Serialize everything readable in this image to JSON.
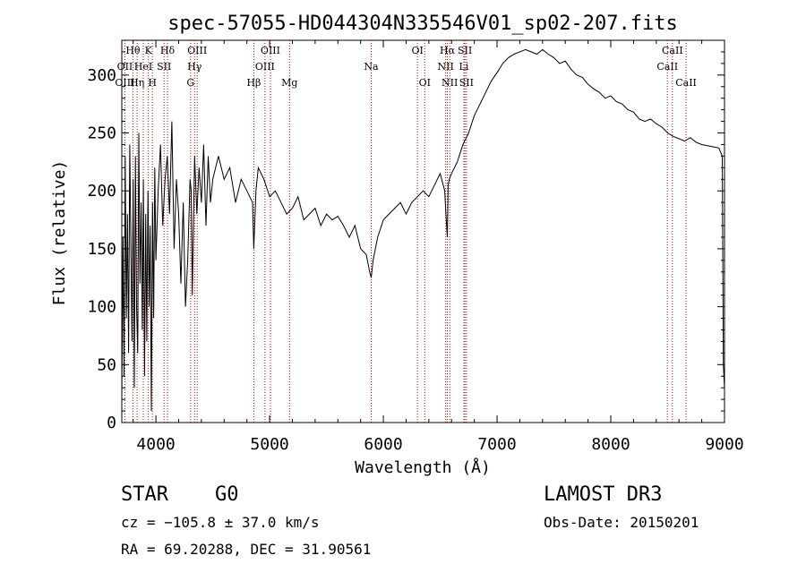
{
  "chart_data": {
    "type": "line",
    "title": "spec-57055-HD044304N335546V01_sp02-207.fits",
    "xlabel": "Wavelength (Å)",
    "ylabel": "Flux (relative)",
    "xlim": [
      3700,
      9000
    ],
    "ylim": [
      0,
      330
    ],
    "x_ticks": [
      4000,
      5000,
      6000,
      7000,
      8000,
      9000
    ],
    "y_ticks": [
      0,
      50,
      100,
      150,
      200,
      250,
      300
    ],
    "spectral_lines": [
      {
        "label": "Hθ",
        "wavelength": 3798,
        "row": 1
      },
      {
        "label": "OII",
        "wavelength": 3727,
        "row": 2
      },
      {
        "label": "OIII",
        "wavelength": 3727,
        "row": 3
      },
      {
        "label": "Hη",
        "wavelength": 3835,
        "row": 3
      },
      {
        "label": "K",
        "wavelength": 3934,
        "row": 1
      },
      {
        "label": "HeI",
        "wavelength": 3889,
        "row": 2
      },
      {
        "label": "H",
        "wavelength": 3969,
        "row": 3
      },
      {
        "label": "Hδ",
        "wavelength": 4102,
        "row": 1
      },
      {
        "label": "SII",
        "wavelength": 4072,
        "row": 2
      },
      {
        "label": "OIII",
        "wavelength": 4363,
        "row": 1
      },
      {
        "label": "Hγ",
        "wavelength": 4340,
        "row": 2
      },
      {
        "label": "G",
        "wavelength": 4305,
        "row": 3
      },
      {
        "label": "Hβ",
        "wavelength": 4861,
        "row": 3
      },
      {
        "label": "OIII",
        "wavelength": 5007,
        "row": 1
      },
      {
        "label": "OIII",
        "wavelength": 4959,
        "row": 2
      },
      {
        "label": "Mg",
        "wavelength": 5175,
        "row": 3
      },
      {
        "label": "Na",
        "wavelength": 5893,
        "row": 2
      },
      {
        "label": "OI",
        "wavelength": 6300,
        "row": 1
      },
      {
        "label": "OI",
        "wavelength": 6364,
        "row": 3
      },
      {
        "label": "Hα",
        "wavelength": 6563,
        "row": 1
      },
      {
        "label": "NII",
        "wavelength": 6548,
        "row": 2
      },
      {
        "label": "NII",
        "wavelength": 6584,
        "row": 3
      },
      {
        "label": "SII",
        "wavelength": 6717,
        "row": 1
      },
      {
        "label": "Li",
        "wavelength": 6708,
        "row": 2
      },
      {
        "label": "SII",
        "wavelength": 6731,
        "row": 3
      },
      {
        "label": "CaII",
        "wavelength": 8542,
        "row": 1
      },
      {
        "label": "CaII",
        "wavelength": 8498,
        "row": 2
      },
      {
        "label": "CaII",
        "wavelength": 8662,
        "row": 3
      }
    ],
    "series": [
      {
        "name": "flux",
        "x": [
          3700,
          3710,
          3720,
          3730,
          3740,
          3750,
          3760,
          3770,
          3780,
          3790,
          3800,
          3810,
          3820,
          3830,
          3840,
          3850,
          3860,
          3870,
          3880,
          3890,
          3900,
          3910,
          3920,
          3930,
          3940,
          3950,
          3960,
          3970,
          3980,
          3990,
          4000,
          4020,
          4040,
          4060,
          4080,
          4100,
          4120,
          4140,
          4160,
          4180,
          4200,
          4220,
          4240,
          4260,
          4280,
          4300,
          4310,
          4320,
          4340,
          4360,
          4380,
          4400,
          4420,
          4440,
          4460,
          4480,
          4500,
          4550,
          4600,
          4650,
          4700,
          4750,
          4800,
          4850,
          4861,
          4880,
          4900,
          4950,
          5000,
          5050,
          5100,
          5150,
          5200,
          5250,
          5300,
          5350,
          5400,
          5450,
          5500,
          5550,
          5600,
          5650,
          5700,
          5750,
          5800,
          5850,
          5880,
          5893,
          5910,
          5950,
          6000,
          6050,
          6100,
          6150,
          6200,
          6250,
          6300,
          6350,
          6400,
          6450,
          6500,
          6540,
          6550,
          6563,
          6570,
          6580,
          6600,
          6650,
          6700,
          6750,
          6800,
          6850,
          6900,
          6950,
          7000,
          7050,
          7100,
          7150,
          7200,
          7250,
          7300,
          7350,
          7400,
          7450,
          7500,
          7550,
          7600,
          7650,
          7700,
          7750,
          7800,
          7850,
          7900,
          7950,
          8000,
          8050,
          8100,
          8150,
          8200,
          8250,
          8300,
          8350,
          8400,
          8450,
          8500,
          8550,
          8600,
          8650,
          8700,
          8750,
          8800,
          8850,
          8900,
          8950,
          8980,
          8990,
          9000
        ],
        "y": [
          20,
          160,
          40,
          230,
          90,
          180,
          60,
          240,
          150,
          70,
          210,
          30,
          230,
          100,
          60,
          250,
          120,
          190,
          80,
          210,
          40,
          180,
          70,
          200,
          100,
          170,
          10,
          190,
          90,
          220,
          140,
          200,
          240,
          170,
          210,
          230,
          180,
          260,
          150,
          210,
          180,
          120,
          190,
          100,
          140,
          210,
          200,
          110,
          230,
          180,
          220,
          190,
          240,
          170,
          230,
          190,
          210,
          230,
          210,
          220,
          190,
          210,
          200,
          190,
          150,
          200,
          220,
          210,
          195,
          200,
          190,
          180,
          185,
          195,
          175,
          180,
          185,
          170,
          180,
          175,
          178,
          170,
          160,
          170,
          150,
          145,
          130,
          125,
          140,
          160,
          175,
          180,
          185,
          190,
          180,
          190,
          195,
          200,
          195,
          205,
          215,
          200,
          180,
          160,
          205,
          210,
          215,
          225,
          240,
          250,
          265,
          275,
          285,
          295,
          302,
          310,
          315,
          318,
          320,
          322,
          320,
          318,
          322,
          318,
          315,
          310,
          312,
          305,
          300,
          298,
          292,
          288,
          285,
          280,
          282,
          277,
          275,
          270,
          268,
          262,
          260,
          262,
          258,
          255,
          250,
          247,
          245,
          243,
          246,
          242,
          240,
          239,
          238,
          237,
          230,
          50,
          30
        ]
      }
    ]
  },
  "info": {
    "object_class": "STAR",
    "subclass": "G0",
    "survey": "LAMOST DR3",
    "redshift": "cz = −105.8 ± 37.0 km/s",
    "obs_date": "Obs-Date: 20150201",
    "coords": "RA =  69.20288, DEC =  31.90561"
  }
}
